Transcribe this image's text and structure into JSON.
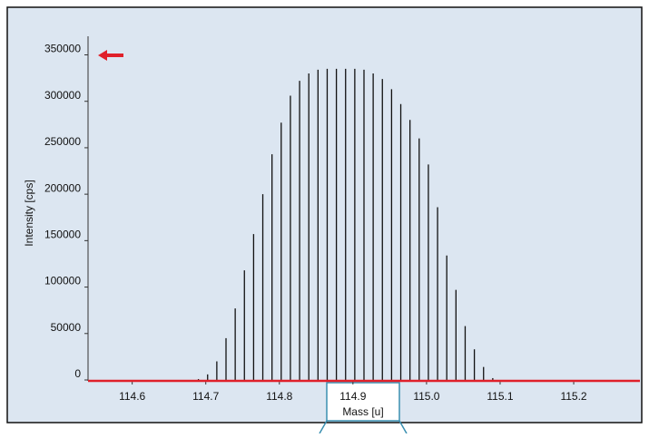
{
  "chart_data": {
    "type": "stem",
    "x_label": "Mass [u]",
    "y_label": "Intensity [cps]",
    "x": [
      114.69,
      114.7025,
      114.715,
      114.7275,
      114.74,
      114.7525,
      114.765,
      114.7775,
      114.79,
      114.8025,
      114.815,
      114.8275,
      114.84,
      114.8525,
      114.865,
      114.8775,
      114.89,
      114.9025,
      114.915,
      114.9275,
      114.94,
      114.9525,
      114.965,
      114.9775,
      114.99,
      115.0025,
      115.015,
      115.0275,
      115.04,
      115.0525,
      115.065,
      115.0775,
      115.09
    ],
    "values": [
      1000,
      6000,
      20000,
      45000,
      77000,
      118000,
      157000,
      200000,
      243000,
      277000,
      306000,
      322000,
      330000,
      334000,
      335000,
      335000,
      335000,
      335000,
      334000,
      330000,
      324000,
      313000,
      297000,
      280000,
      260000,
      232000,
      186000,
      134000,
      97000,
      58000,
      33000,
      14000,
      2000
    ],
    "color": "#111111",
    "axis_color": "#e0202a",
    "xlim": [
      114.54,
      115.29
    ],
    "ylim": [
      0,
      370000
    ],
    "xticks": [
      114.6,
      114.7,
      114.8,
      114.9,
      {
        "value": 115.0,
        "label": "115.0"
      },
      115.1,
      115.2
    ],
    "yticks": [
      0,
      50000,
      100000,
      150000,
      200000,
      250000,
      300000,
      350000
    ]
  }
}
